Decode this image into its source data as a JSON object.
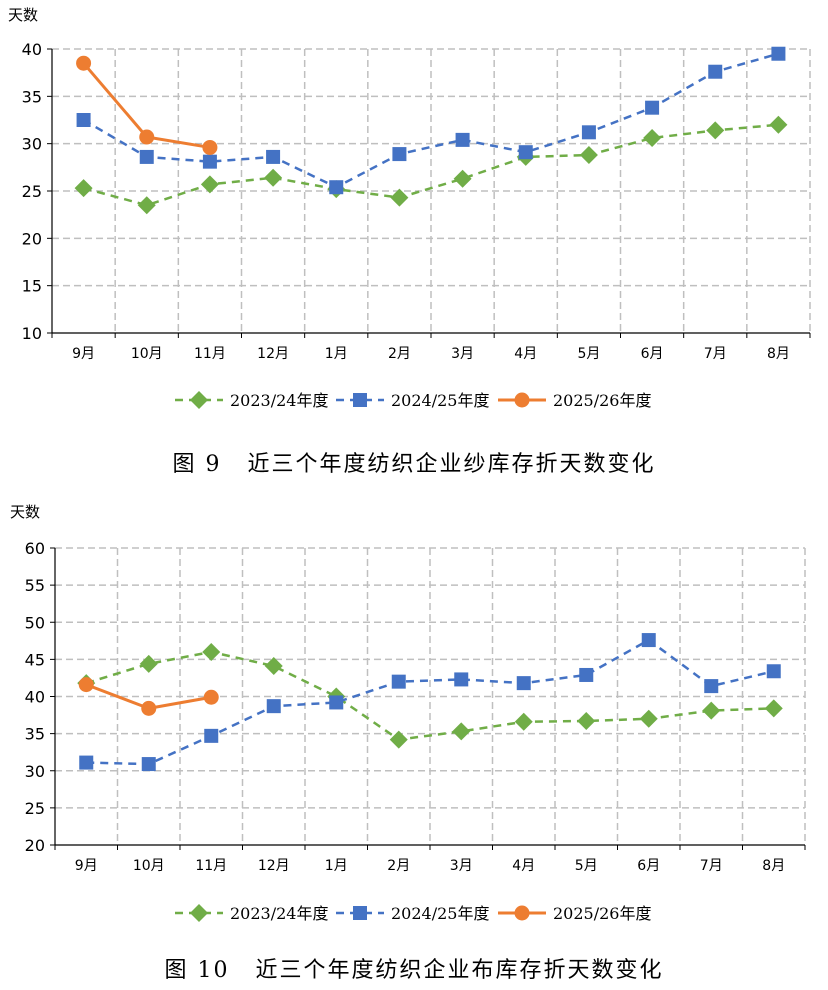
{
  "chart_data": [
    {
      "type": "line",
      "ylabel": "天数",
      "ylim": [
        10,
        40
      ],
      "yticks": [
        10,
        15,
        20,
        25,
        30,
        35,
        40
      ],
      "grid": true,
      "categories": [
        "9月",
        "10月",
        "11月",
        "12月",
        "1月",
        "2月",
        "3月",
        "4月",
        "5月",
        "6月",
        "7月",
        "8月"
      ],
      "series": [
        {
          "name": "2023/24年度",
          "color": "#70AD47",
          "marker": "diamond",
          "dash": true,
          "values": [
            25.3,
            23.5,
            25.7,
            26.4,
            25.2,
            24.3,
            26.3,
            28.6,
            28.8,
            30.6,
            31.4,
            32.0
          ]
        },
        {
          "name": "2024/25年度",
          "color": "#4472C4",
          "marker": "square",
          "dash": true,
          "values": [
            32.5,
            28.6,
            28.1,
            28.6,
            25.4,
            28.9,
            30.4,
            29.1,
            31.2,
            33.8,
            37.6,
            39.5
          ]
        },
        {
          "name": "2025/26年度",
          "color": "#ED7D31",
          "marker": "circle",
          "dash": false,
          "values": [
            38.5,
            30.7,
            29.6,
            null,
            null,
            null,
            null,
            null,
            null,
            null,
            null,
            null
          ]
        }
      ],
      "caption_num": "图 9",
      "caption_text": "近三个年度纺织企业纱库存折天数变化"
    },
    {
      "type": "line",
      "ylabel": "天数",
      "ylim": [
        20,
        60
      ],
      "yticks": [
        20,
        25,
        30,
        35,
        40,
        45,
        50,
        55,
        60
      ],
      "grid": true,
      "categories": [
        "9月",
        "10月",
        "11月",
        "12月",
        "1月",
        "2月",
        "3月",
        "4月",
        "5月",
        "6月",
        "7月",
        "8月"
      ],
      "series": [
        {
          "name": "2023/24年度",
          "color": "#70AD47",
          "marker": "diamond",
          "dash": true,
          "values": [
            41.8,
            44.4,
            46.0,
            44.1,
            40.0,
            34.2,
            35.3,
            36.6,
            36.7,
            37.0,
            38.1,
            38.4
          ]
        },
        {
          "name": "2024/25年度",
          "color": "#4472C4",
          "marker": "square",
          "dash": true,
          "values": [
            31.1,
            30.9,
            34.7,
            38.7,
            39.2,
            42.0,
            42.3,
            41.8,
            42.9,
            47.6,
            41.4,
            43.4
          ]
        },
        {
          "name": "2025/26年度",
          "color": "#ED7D31",
          "marker": "circle",
          "dash": false,
          "values": [
            41.6,
            38.4,
            39.9,
            null,
            null,
            null,
            null,
            null,
            null,
            null,
            null,
            null
          ]
        }
      ],
      "caption_num": "图 10",
      "caption_text": "近三个年度纺织企业布库存折天数变化"
    }
  ]
}
